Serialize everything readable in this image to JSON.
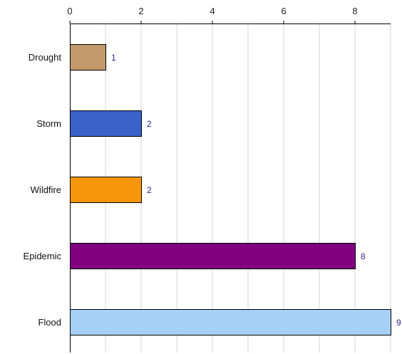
{
  "chart_data": {
    "type": "bar",
    "orientation": "horizontal",
    "title": "",
    "xlabel": "",
    "ylabel": "",
    "categories": [
      "Drought",
      "Storm",
      "Wildfire",
      "Epidemic",
      "Flood"
    ],
    "values": [
      1,
      2,
      2,
      8,
      9
    ],
    "colors": [
      "#c49a6c",
      "#3a62c9",
      "#f7960b",
      "#800080",
      "#a6d0f7"
    ],
    "data_labels": [
      "1",
      "2",
      "2",
      "8",
      "9"
    ],
    "xlim": [
      0,
      9
    ],
    "x_ticks": [
      0,
      2,
      4,
      6,
      8
    ],
    "x_tick_labels": [
      "0",
      "2",
      "4",
      "6",
      "8"
    ],
    "x_axis_position": "top",
    "grid": true,
    "grid_step": 1,
    "legend": "none"
  }
}
